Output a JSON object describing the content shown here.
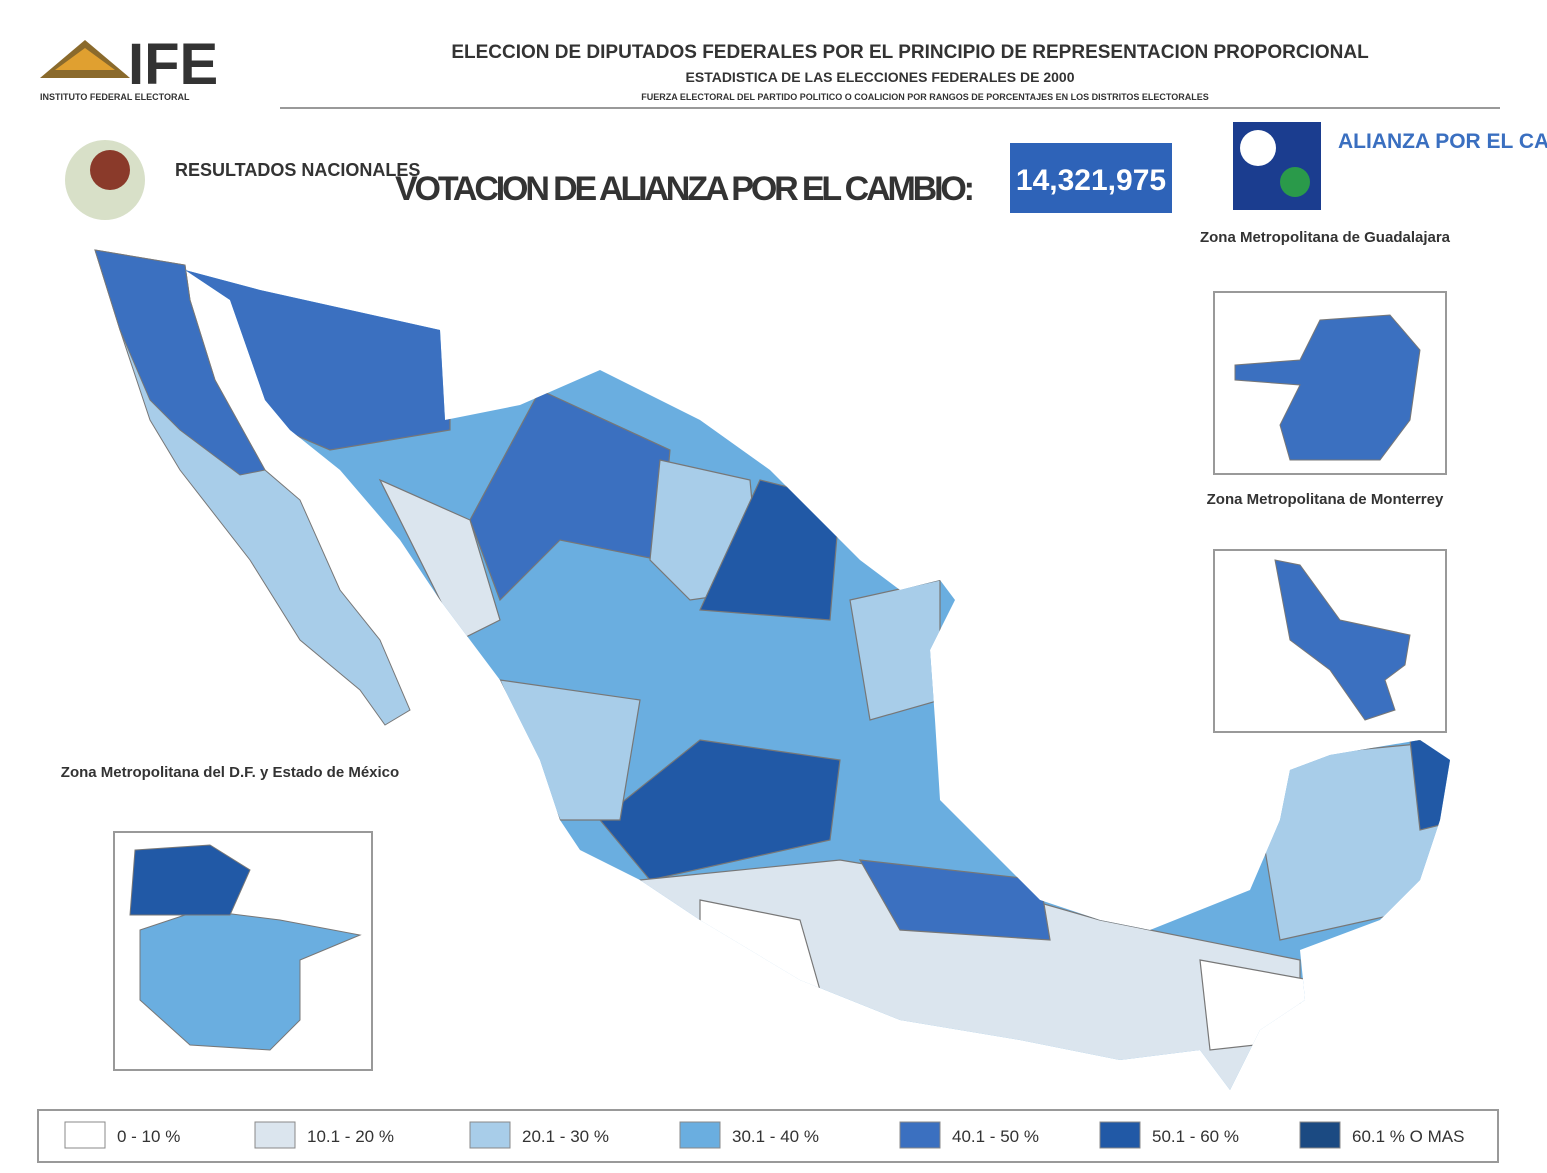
{
  "header": {
    "logo": "IFE",
    "institution": "INSTITUTO FEDERAL ELECTORAL",
    "title": "ELECCION DE DIPUTADOS FEDERALES POR EL PRINCIPIO DE REPRESENTACION PROPORCIONAL",
    "subtitle": "ESTADISTICA DE LAS ELECCIONES FEDERALES DE 2000",
    "description": "FUERZA ELECTORAL DEL PARTIDO POLITICO O COALICION POR RANGOS DE PORCENTAJES EN LOS DISTRITOS ELECTORALES"
  },
  "results": {
    "label": "RESULTADOS NACIONALES",
    "vote_label": "VOTACION DE ALIANZA POR EL CAMBIO:",
    "vote_total": "14,321,975",
    "party": "ALIANZA POR EL CAMBIO"
  },
  "insets": [
    "Zona Metropolitana de Guadalajara",
    "Zona Metropolitana de Monterrey",
    "Zona Metropolitana del D.F. y Estado de México"
  ],
  "legend": [
    {
      "label": "0 - 10 %",
      "color": "#ffffff"
    },
    {
      "label": "10.1 - 20 %",
      "color": "#dbe5ee"
    },
    {
      "label": "20.1 - 30 %",
      "color": "#a8cde9"
    },
    {
      "label": "30.1 - 40 %",
      "color": "#6aaee0"
    },
    {
      "label": "40.1 - 50 %",
      "color": "#3b70c0"
    },
    {
      "label": "50.1 - 60 %",
      "color": "#2159a6"
    },
    {
      "label": "60.1 % O MAS",
      "color": "#1b4a82"
    }
  ]
}
